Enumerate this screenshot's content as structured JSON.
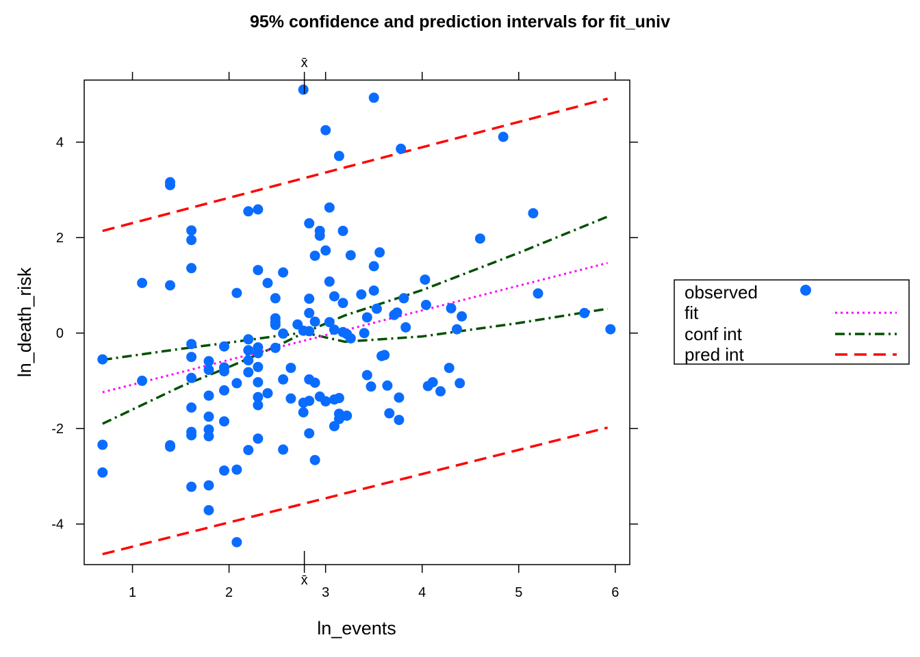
{
  "chart_data": {
    "type": "scatter",
    "title": "95% confidence and prediction intervals for fit_univ",
    "xlabel": "ln_events",
    "ylabel": "ln_death_risk",
    "xlim": [
      0.5,
      6.15
    ],
    "ylim": [
      -4.85,
      5.3
    ],
    "x_ticks": [
      1,
      2,
      3,
      4,
      5,
      6
    ],
    "y_ticks": [
      -4,
      -2,
      0,
      2,
      4
    ],
    "x_tick_labels": [
      "1",
      "2",
      "3",
      "4",
      "5",
      "6"
    ],
    "y_tick_labels": [
      "-4",
      "-2",
      "0",
      "2",
      "4"
    ],
    "grid": false,
    "xbar_label": "x̄",
    "xbar_value": 2.78,
    "legend": {
      "placement": "right",
      "entries": [
        {
          "label": "observed",
          "key": "observed",
          "color": "#0a6cff",
          "style": "point"
        },
        {
          "label": "fit",
          "key": "fit",
          "color": "#ff00ff",
          "style": "dotted"
        },
        {
          "label": "conf int",
          "key": "conf_int",
          "color": "#005000",
          "style": "dashdot"
        },
        {
          "label": "pred int",
          "key": "pred_int",
          "color": "#ff0000",
          "style": "dashed"
        }
      ]
    },
    "observed": [
      [
        0.69,
        -0.55
      ],
      [
        0.69,
        -2.34
      ],
      [
        0.69,
        -2.92
      ],
      [
        1.1,
        1.05
      ],
      [
        1.1,
        -1.0
      ],
      [
        1.39,
        3.16
      ],
      [
        1.39,
        3.1
      ],
      [
        1.39,
        1.0
      ],
      [
        1.39,
        -2.35
      ],
      [
        1.39,
        -2.38
      ],
      [
        1.61,
        2.15
      ],
      [
        1.61,
        1.95
      ],
      [
        1.61,
        1.36
      ],
      [
        1.61,
        -0.23
      ],
      [
        1.61,
        -0.5
      ],
      [
        1.61,
        -0.94
      ],
      [
        1.61,
        -1.56
      ],
      [
        1.61,
        -2.07
      ],
      [
        1.61,
        -2.14
      ],
      [
        1.61,
        -3.22
      ],
      [
        1.79,
        -0.59
      ],
      [
        1.79,
        -0.77
      ],
      [
        1.79,
        -1.31
      ],
      [
        1.79,
        -1.75
      ],
      [
        1.79,
        -2.02
      ],
      [
        1.79,
        -2.16
      ],
      [
        1.79,
        -3.19
      ],
      [
        1.79,
        -3.71
      ],
      [
        1.95,
        -0.28
      ],
      [
        1.95,
        -0.72
      ],
      [
        1.95,
        -0.8
      ],
      [
        1.95,
        -1.2
      ],
      [
        1.95,
        -1.85
      ],
      [
        1.95,
        -2.88
      ],
      [
        2.08,
        0.84
      ],
      [
        2.08,
        -1.05
      ],
      [
        2.08,
        -2.86
      ],
      [
        2.08,
        -4.38
      ],
      [
        2.2,
        2.55
      ],
      [
        2.2,
        -0.13
      ],
      [
        2.2,
        -0.36
      ],
      [
        2.2,
        -0.57
      ],
      [
        2.2,
        -0.82
      ],
      [
        2.2,
        -2.45
      ],
      [
        2.3,
        2.59
      ],
      [
        2.3,
        1.32
      ],
      [
        2.3,
        -0.3
      ],
      [
        2.3,
        -0.42
      ],
      [
        2.3,
        -0.71
      ],
      [
        2.3,
        -1.03
      ],
      [
        2.3,
        -1.34
      ],
      [
        2.3,
        -1.51
      ],
      [
        2.3,
        -2.21
      ],
      [
        2.4,
        1.05
      ],
      [
        2.4,
        -1.26
      ],
      [
        2.48,
        0.73
      ],
      [
        2.48,
        0.31
      ],
      [
        2.48,
        0.23
      ],
      [
        2.48,
        0.17
      ],
      [
        2.48,
        -0.31
      ],
      [
        2.56,
        1.27
      ],
      [
        2.56,
        -0.01
      ],
      [
        2.56,
        -0.97
      ],
      [
        2.56,
        -2.44
      ],
      [
        2.64,
        -0.73
      ],
      [
        2.64,
        -1.37
      ],
      [
        2.71,
        0.18
      ],
      [
        2.77,
        5.1
      ],
      [
        2.77,
        0.05
      ],
      [
        2.77,
        -1.46
      ],
      [
        2.77,
        -1.66
      ],
      [
        2.83,
        2.3
      ],
      [
        2.83,
        0.72
      ],
      [
        2.83,
        0.42
      ],
      [
        2.83,
        0.04
      ],
      [
        2.83,
        -0.97
      ],
      [
        2.83,
        -1.42
      ],
      [
        2.83,
        -2.1
      ],
      [
        2.89,
        1.62
      ],
      [
        2.89,
        0.24
      ],
      [
        2.89,
        -1.04
      ],
      [
        2.89,
        -2.66
      ],
      [
        2.94,
        2.14
      ],
      [
        2.94,
        2.04
      ],
      [
        2.94,
        -1.33
      ],
      [
        3.0,
        4.25
      ],
      [
        3.0,
        1.73
      ],
      [
        3.0,
        -1.43
      ],
      [
        3.04,
        2.63
      ],
      [
        3.04,
        1.08
      ],
      [
        3.04,
        0.23
      ],
      [
        3.09,
        0.77
      ],
      [
        3.09,
        0.07
      ],
      [
        3.09,
        -1.39
      ],
      [
        3.09,
        -1.95
      ],
      [
        3.14,
        3.71
      ],
      [
        3.14,
        -1.36
      ],
      [
        3.14,
        -1.69
      ],
      [
        3.14,
        -1.8
      ],
      [
        3.18,
        2.14
      ],
      [
        3.18,
        0.63
      ],
      [
        3.18,
        0.02
      ],
      [
        3.22,
        -0.02
      ],
      [
        3.22,
        -1.73
      ],
      [
        3.26,
        1.63
      ],
      [
        3.26,
        -0.11
      ],
      [
        3.37,
        0.81
      ],
      [
        3.4,
        0.0
      ],
      [
        3.43,
        0.33
      ],
      [
        3.43,
        -0.88
      ],
      [
        3.47,
        -1.12
      ],
      [
        3.5,
        4.93
      ],
      [
        3.5,
        1.4
      ],
      [
        3.5,
        0.89
      ],
      [
        3.53,
        0.51
      ],
      [
        3.56,
        1.69
      ],
      [
        3.58,
        -0.48
      ],
      [
        3.61,
        -0.46
      ],
      [
        3.64,
        -1.1
      ],
      [
        3.66,
        -1.68
      ],
      [
        3.71,
        0.38
      ],
      [
        3.74,
        0.43
      ],
      [
        3.76,
        -1.35
      ],
      [
        3.76,
        -1.82
      ],
      [
        3.78,
        3.86
      ],
      [
        3.81,
        0.73
      ],
      [
        3.83,
        0.12
      ],
      [
        4.03,
        1.12
      ],
      [
        4.04,
        0.59
      ],
      [
        4.06,
        -1.11
      ],
      [
        4.11,
        -1.03
      ],
      [
        4.19,
        -1.22
      ],
      [
        4.28,
        -0.73
      ],
      [
        4.3,
        0.52
      ],
      [
        4.36,
        0.08
      ],
      [
        4.39,
        -1.05
      ],
      [
        4.41,
        0.35
      ],
      [
        4.6,
        1.98
      ],
      [
        4.84,
        4.11
      ],
      [
        5.15,
        2.51
      ],
      [
        5.2,
        0.83
      ],
      [
        5.68,
        0.42
      ],
      [
        5.95,
        0.08
      ]
    ],
    "fit_line": {
      "x": [
        0.69,
        5.92
      ],
      "y": [
        -1.24,
        1.47
      ]
    },
    "conf_int": {
      "lower": {
        "x": [
          0.69,
          1.5,
          2.0,
          2.5,
          2.78,
          3.2,
          4.0,
          5.0,
          5.92
        ],
        "y": [
          -0.56,
          -0.33,
          -0.2,
          -0.06,
          0.01,
          -0.18,
          -0.07,
          0.21,
          0.51
        ]
      },
      "upper": {
        "x": [
          0.69,
          1.5,
          2.0,
          2.5,
          2.78,
          3.2,
          4.0,
          5.0,
          5.92
        ],
        "y": [
          -1.9,
          -1.12,
          -0.71,
          -0.27,
          0.01,
          0.37,
          0.9,
          1.68,
          2.44
        ]
      }
    },
    "pred_int": {
      "lower": {
        "x": [
          0.69,
          5.92
        ],
        "y": [
          -4.63,
          -1.98
        ]
      },
      "upper": {
        "x": [
          0.69,
          5.92
        ],
        "y": [
          2.14,
          4.91
        ]
      }
    }
  }
}
